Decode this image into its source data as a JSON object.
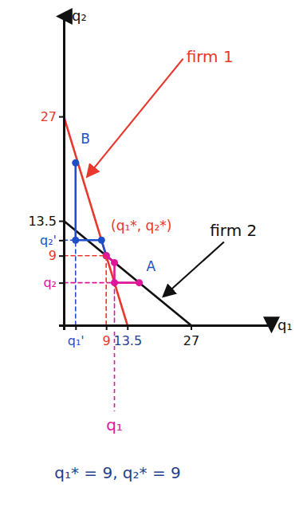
{
  "chart_data": {
    "type": "line",
    "x_label": "q₁",
    "y_label": "q₂",
    "xlim": [
      0,
      44
    ],
    "ylim": [
      0,
      40
    ],
    "xticks": [
      {
        "value": 2.5,
        "label": "q₁'"
      },
      9,
      13.5,
      27
    ],
    "yticks": [
      {
        "value": 5.5,
        "label": "q₂"
      },
      9,
      {
        "value": 11,
        "label": "q₂'"
      },
      13.5,
      27
    ],
    "grid": false,
    "series": [
      {
        "color": "#e8372c",
        "line_style": "solid",
        "x": [
          0,
          13.5
        ],
        "values": [
          27,
          0
        ]
      },
      {
        "color": "#111111",
        "line_style": "solid",
        "x": [
          0,
          27
        ],
        "values": [
          13.5,
          0
        ]
      },
      {
        "color": "#1f4fc8",
        "line_style": "solid",
        "marker": "circle",
        "x": [
          2.5,
          2.5,
          8,
          9
        ],
        "values": [
          21,
          11,
          11,
          9
        ]
      },
      {
        "color": "#e0169a",
        "line_style": "solid",
        "marker": "circle",
        "x": [
          16,
          10.75,
          10.75,
          9
        ],
        "values": [
          5.5,
          5.5,
          8.1,
          9
        ]
      },
      {
        "color": "#1f4fc8",
        "line_style": "dashed",
        "x": [
          2.5,
          2.5,
          0
        ],
        "values": [
          0,
          11,
          11
        ]
      },
      {
        "color": "#e8372c",
        "line_style": "dashed",
        "x": [
          0,
          9,
          9
        ],
        "values": [
          9,
          9,
          0
        ]
      },
      {
        "color": "#e0169a",
        "line_style": "dashed",
        "x": [
          0,
          10.75,
          10.75
        ],
        "values": [
          5.5,
          5.5,
          0
        ]
      }
    ],
    "annotations": [
      {
        "text": "firm 1",
        "x": 26,
        "y": 34,
        "color": "#e8372c"
      },
      {
        "text": "firm 2",
        "x": 31,
        "y": 11.5,
        "color": "#111111"
      },
      {
        "text": "B",
        "x": 3.6,
        "y": 23.5,
        "color": "#1f4fc8"
      },
      {
        "text": "A",
        "x": 17.5,
        "y": 7,
        "color": "#1f4fc8"
      },
      {
        "text": "(q₁*, q₂*)",
        "x": 10,
        "y": 12.3,
        "color": "#e8372c"
      },
      {
        "text": "q₁",
        "x": 10.75,
        "color": "#e0169a"
      }
    ],
    "caption": "q₁* = 9, q₂* = 9"
  }
}
